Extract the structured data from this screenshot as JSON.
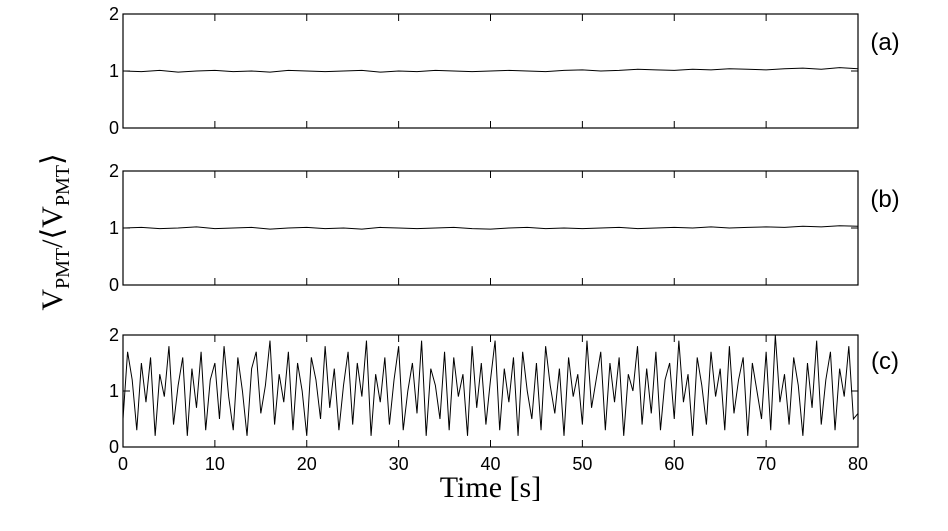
{
  "chart_data": [
    {
      "type": "line",
      "label": "(a)",
      "color": "#000000",
      "xlim": [
        0,
        80
      ],
      "ylim": [
        0,
        2
      ],
      "yticks": [
        0,
        1,
        2
      ],
      "x": [
        0,
        2,
        4,
        6,
        8,
        10,
        12,
        14,
        16,
        18,
        20,
        22,
        24,
        26,
        28,
        30,
        32,
        34,
        36,
        38,
        40,
        42,
        44,
        46,
        48,
        50,
        52,
        54,
        56,
        58,
        60,
        62,
        64,
        66,
        68,
        70,
        72,
        74,
        76,
        78,
        80
      ],
      "values": [
        1.0,
        0.99,
        1.01,
        0.98,
        1.0,
        1.01,
        0.99,
        1.0,
        0.98,
        1.01,
        1.0,
        0.99,
        1.0,
        1.01,
        0.98,
        1.0,
        0.99,
        1.01,
        1.0,
        0.99,
        1.0,
        1.01,
        1.0,
        0.99,
        1.01,
        1.02,
        1.0,
        1.01,
        1.03,
        1.02,
        1.01,
        1.03,
        1.02,
        1.04,
        1.03,
        1.02,
        1.04,
        1.05,
        1.03,
        1.06,
        1.04
      ]
    },
    {
      "type": "line",
      "label": "(b)",
      "color": "#000000",
      "xlim": [
        0,
        80
      ],
      "ylim": [
        0,
        2
      ],
      "yticks": [
        0,
        1,
        2
      ],
      "ylabel": [
        "V",
        "PMT",
        "/⟨V",
        "PMT",
        "⟩"
      ],
      "x": [
        0,
        2,
        4,
        6,
        8,
        10,
        12,
        14,
        16,
        18,
        20,
        22,
        24,
        26,
        28,
        30,
        32,
        34,
        36,
        38,
        40,
        42,
        44,
        46,
        48,
        50,
        52,
        54,
        56,
        58,
        60,
        62,
        64,
        66,
        68,
        70,
        72,
        74,
        76,
        78,
        80
      ],
      "values": [
        1.0,
        1.01,
        0.99,
        1.0,
        1.02,
        0.99,
        1.0,
        1.01,
        0.98,
        1.0,
        1.01,
        0.99,
        1.0,
        0.98,
        1.01,
        1.0,
        0.99,
        1.0,
        1.01,
        0.99,
        0.98,
        1.0,
        1.01,
        0.99,
        1.0,
        0.99,
        1.0,
        1.01,
        0.99,
        1.0,
        1.01,
        1.0,
        1.02,
        1.0,
        1.01,
        1.02,
        1.01,
        1.03,
        1.02,
        1.04,
        1.03
      ]
    },
    {
      "type": "line",
      "label": "(c)",
      "color": "#000000",
      "xlim": [
        0,
        80
      ],
      "ylim": [
        0,
        2
      ],
      "yticks": [
        0,
        1,
        2
      ],
      "xticks": [
        0,
        10,
        20,
        30,
        40,
        50,
        60,
        70,
        80
      ],
      "xlabel": "Time [s]",
      "x": [
        0,
        0.5,
        1,
        1.5,
        2,
        2.5,
        3,
        3.5,
        4,
        4.5,
        5,
        5.5,
        6,
        6.5,
        7,
        7.5,
        8,
        8.5,
        9,
        9.5,
        10,
        10.5,
        11,
        11.5,
        12,
        12.5,
        13,
        13.5,
        14,
        14.5,
        15,
        15.5,
        16,
        16.5,
        17,
        17.5,
        18,
        18.5,
        19,
        19.5,
        20,
        20.5,
        21,
        21.5,
        22,
        22.5,
        23,
        23.5,
        24,
        24.5,
        25,
        25.5,
        26,
        26.5,
        27,
        27.5,
        28,
        28.5,
        29,
        29.5,
        30,
        30.5,
        31,
        31.5,
        32,
        32.5,
        33,
        33.5,
        34,
        34.5,
        35,
        35.5,
        36,
        36.5,
        37,
        37.5,
        38,
        38.5,
        39,
        39.5,
        40,
        40.5,
        41,
        41.5,
        42,
        42.5,
        43,
        43.5,
        44,
        44.5,
        45,
        45.5,
        46,
        46.5,
        47,
        47.5,
        48,
        48.5,
        49,
        49.5,
        50,
        50.5,
        51,
        51.5,
        52,
        52.5,
        53,
        53.5,
        54,
        54.5,
        55,
        55.5,
        56,
        56.5,
        57,
        57.5,
        58,
        58.5,
        59,
        59.5,
        60,
        60.5,
        61,
        61.5,
        62,
        62.5,
        63,
        63.5,
        64,
        64.5,
        65,
        65.5,
        66,
        66.5,
        67,
        67.5,
        68,
        68.5,
        69,
        69.5,
        70,
        70.5,
        71,
        71.5,
        72,
        72.5,
        73,
        73.5,
        74,
        74.5,
        75,
        75.5,
        76,
        76.5,
        77,
        77.5,
        78,
        78.5,
        79,
        79.5,
        80
      ],
      "values": [
        0.5,
        1.7,
        1.2,
        0.3,
        1.5,
        0.8,
        1.6,
        0.2,
        1.3,
        0.9,
        1.8,
        0.4,
        1.1,
        1.6,
        0.2,
        1.4,
        0.7,
        1.7,
        0.3,
        1.2,
        1.5,
        0.5,
        1.8,
        0.9,
        0.3,
        1.6,
        1.0,
        0.2,
        1.4,
        1.7,
        0.6,
        1.1,
        1.9,
        0.4,
        1.3,
        0.8,
        1.7,
        0.3,
        1.5,
        1.0,
        0.2,
        1.6,
        1.2,
        0.5,
        1.8,
        0.7,
        1.4,
        0.3,
        1.1,
        1.7,
        0.4,
        1.5,
        0.9,
        1.9,
        0.2,
        1.3,
        0.8,
        1.6,
        0.4,
        1.2,
        1.8,
        0.3,
        1.0,
        1.5,
        0.6,
        1.9,
        0.2,
        1.4,
        1.1,
        0.5,
        1.7,
        0.3,
        1.6,
        0.9,
        1.3,
        0.2,
        1.8,
        0.7,
        1.5,
        0.4,
        1.2,
        1.9,
        0.3,
        1.4,
        0.8,
        1.6,
        0.2,
        1.7,
        1.0,
        0.5,
        1.5,
        0.3,
        1.8,
        1.1,
        0.6,
        1.4,
        0.2,
        1.6,
        0.9,
        1.3,
        0.4,
        1.9,
        0.7,
        1.2,
        1.7,
        0.3,
        1.5,
        0.8,
        1.6,
        0.2,
        1.3,
        1.0,
        1.8,
        0.4,
        1.4,
        0.6,
        1.7,
        0.3,
        1.2,
        1.5,
        0.5,
        1.9,
        0.8,
        1.3,
        0.2,
        1.6,
        1.1,
        0.4,
        1.7,
        0.9,
        1.4,
        0.3,
        1.8,
        0.6,
        1.2,
        1.6,
        0.2,
        1.5,
        1.0,
        0.5,
        1.7,
        0.3,
        2.0,
        0.8,
        1.3,
        0.4,
        1.6,
        1.1,
        0.2,
        1.5,
        0.7,
        1.9,
        0.4,
        1.2,
        1.7,
        0.3,
        1.4,
        0.9,
        1.8,
        0.5,
        0.6
      ]
    }
  ]
}
